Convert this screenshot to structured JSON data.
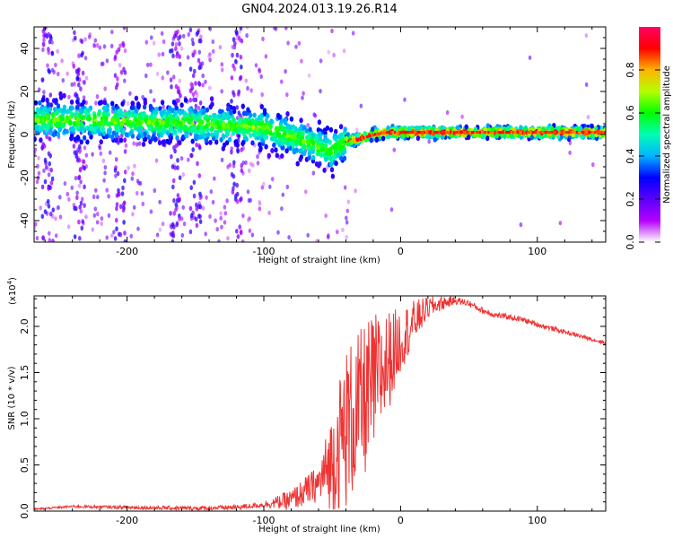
{
  "title": "GN04.2024.013.19.26.R14",
  "chart_data": [
    {
      "type": "heatmap",
      "xlabel": "Height of straight line (km)",
      "ylabel": "Frequency (Hz)",
      "xlim": [
        -268,
        150
      ],
      "ylim": [
        -50,
        50
      ],
      "xticks": [
        -200,
        -100,
        0,
        100
      ],
      "yticks": [
        -40,
        -20,
        0,
        20,
        40
      ],
      "xtick_labels": [
        "-200",
        "-100",
        "0",
        "100"
      ],
      "ytick_labels": [
        "-40",
        "-20",
        "0",
        "20",
        "40"
      ],
      "colorbar": {
        "label": "Normalized spectral amplitude",
        "range": [
          0,
          1
        ],
        "ticks": [
          0.0,
          0.2,
          0.4,
          0.6,
          0.8
        ],
        "tick_labels": [
          "0.0",
          "0.2",
          "0.4",
          "0.6",
          "0.8"
        ],
        "colors": [
          "#ffffff",
          "#b400ff",
          "#5a00ff",
          "#0000ff",
          "#00b4ff",
          "#00ffb4",
          "#00ff00",
          "#b4ff00",
          "#ffb400",
          "#ff0000",
          "#ff0064"
        ]
      },
      "ridge": {
        "x": [
          -268,
          -200,
          -150,
          -100,
          -70,
          -50,
          -40,
          -30,
          -20,
          -10,
          0,
          50,
          100,
          150
        ],
        "frequency": [
          7,
          6,
          5,
          3,
          -3,
          -8,
          -3,
          -2,
          0,
          1,
          1,
          1,
          1,
          1
        ]
      },
      "grid": false
    },
    {
      "type": "line",
      "xlabel": "Height of straight line (km)",
      "ylabel": "SNR (10 * v/v)",
      "y_multiplier_label": "(x10",
      "y_multiplier_exp": "4",
      "y_multiplier_close": ")",
      "xlim": [
        -268,
        150
      ],
      "ylim": [
        0,
        2.33
      ],
      "xticks": [
        -200,
        -100,
        0,
        100
      ],
      "yticks": [
        0.0,
        0.5,
        1.0,
        1.5,
        2.0
      ],
      "xtick_labels": [
        "-200",
        "-100",
        "0",
        "100"
      ],
      "ytick_labels": [
        "0.0",
        "0.5",
        "1.0",
        "1.5",
        "2.0"
      ],
      "series": [
        {
          "color": "#ee3333",
          "envelope": {
            "x": [
              -268,
              -240,
              -200,
              -150,
              -120,
              -100,
              -80,
              -60,
              -50,
              -40,
              -30,
              -20,
              -10,
              0,
              10,
              20,
              30,
              40,
              50,
              60,
              70,
              80,
              90,
              100,
              110,
              120,
              130,
              140,
              150
            ],
            "y": [
              0.02,
              0.05,
              0.04,
              0.03,
              0.04,
              0.07,
              0.12,
              0.3,
              0.55,
              0.9,
              1.1,
              1.35,
              1.6,
              1.85,
              2.05,
              2.2,
              2.25,
              2.28,
              2.25,
              2.17,
              2.12,
              2.1,
              2.07,
              2.02,
              1.98,
              1.94,
              1.9,
              1.86,
              1.82
            ]
          },
          "noise": {
            "x": [
              -268,
              -100,
              -60,
              -40,
              -20,
              0,
              20,
              40,
              80,
              150
            ],
            "amplitude": [
              0.01,
              0.03,
              0.2,
              0.9,
              0.8,
              0.35,
              0.12,
              0.04,
              0.03,
              0.02
            ]
          }
        }
      ],
      "grid": false
    }
  ]
}
